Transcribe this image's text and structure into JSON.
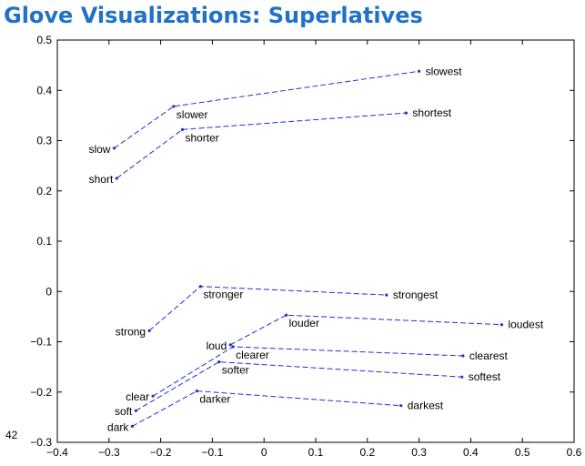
{
  "slide": {
    "title": "Glove Visualizations: Superlatives",
    "page_number": "42"
  },
  "colors": {
    "title": "#1f72c6",
    "series_line": "#1f2fd6",
    "axes": "#000000"
  },
  "chart_data": {
    "type": "line",
    "title": "",
    "xlabel": "",
    "ylabel": "",
    "xlim": [
      -0.4,
      0.6
    ],
    "ylim": [
      -0.3,
      0.5
    ],
    "xticks": [
      "−0.4",
      "−0.3",
      "−0.2",
      "−0.1",
      "0",
      "0.1",
      "0.2",
      "0.3",
      "0.4",
      "0.5",
      "0.6"
    ],
    "yticks": [
      "−0.3",
      "−0.2",
      "−0.1",
      "0",
      "0.1",
      "0.2",
      "0.3",
      "0.4",
      "0.5"
    ],
    "grid": false,
    "line_style": "dashed",
    "series": [
      {
        "points": [
          {
            "label": "slow",
            "x": -0.29,
            "y": 0.285
          },
          {
            "label": "slower",
            "x": -0.175,
            "y": 0.368
          },
          {
            "label": "slowest",
            "x": 0.3,
            "y": 0.438
          }
        ]
      },
      {
        "points": [
          {
            "label": "short",
            "x": -0.285,
            "y": 0.225
          },
          {
            "label": "shorter",
            "x": -0.158,
            "y": 0.322
          },
          {
            "label": "shortest",
            "x": 0.275,
            "y": 0.355
          }
        ]
      },
      {
        "points": [
          {
            "label": "strong",
            "x": -0.222,
            "y": -0.078
          },
          {
            "label": "stronger",
            "x": -0.123,
            "y": 0.01
          },
          {
            "label": "strongest",
            "x": 0.237,
            "y": -0.007
          }
        ]
      },
      {
        "points": [
          {
            "label": "loud",
            "x": -0.065,
            "y": -0.106
          },
          {
            "label": "louder",
            "x": 0.043,
            "y": -0.047
          },
          {
            "label": "loudest",
            "x": 0.46,
            "y": -0.066
          }
        ]
      },
      {
        "points": [
          {
            "label": "clear",
            "x": -0.215,
            "y": -0.208
          },
          {
            "label": "clearer",
            "x": -0.06,
            "y": -0.11
          },
          {
            "label": "clearest",
            "x": 0.385,
            "y": -0.128
          }
        ]
      },
      {
        "points": [
          {
            "label": "soft",
            "x": -0.248,
            "y": -0.237
          },
          {
            "label": "softer",
            "x": -0.087,
            "y": -0.14
          },
          {
            "label": "softest",
            "x": 0.383,
            "y": -0.17
          }
        ]
      },
      {
        "points": [
          {
            "label": "dark",
            "x": -0.255,
            "y": -0.268
          },
          {
            "label": "darker",
            "x": -0.13,
            "y": -0.198
          },
          {
            "label": "darkest",
            "x": 0.265,
            "y": -0.227
          }
        ]
      }
    ]
  }
}
